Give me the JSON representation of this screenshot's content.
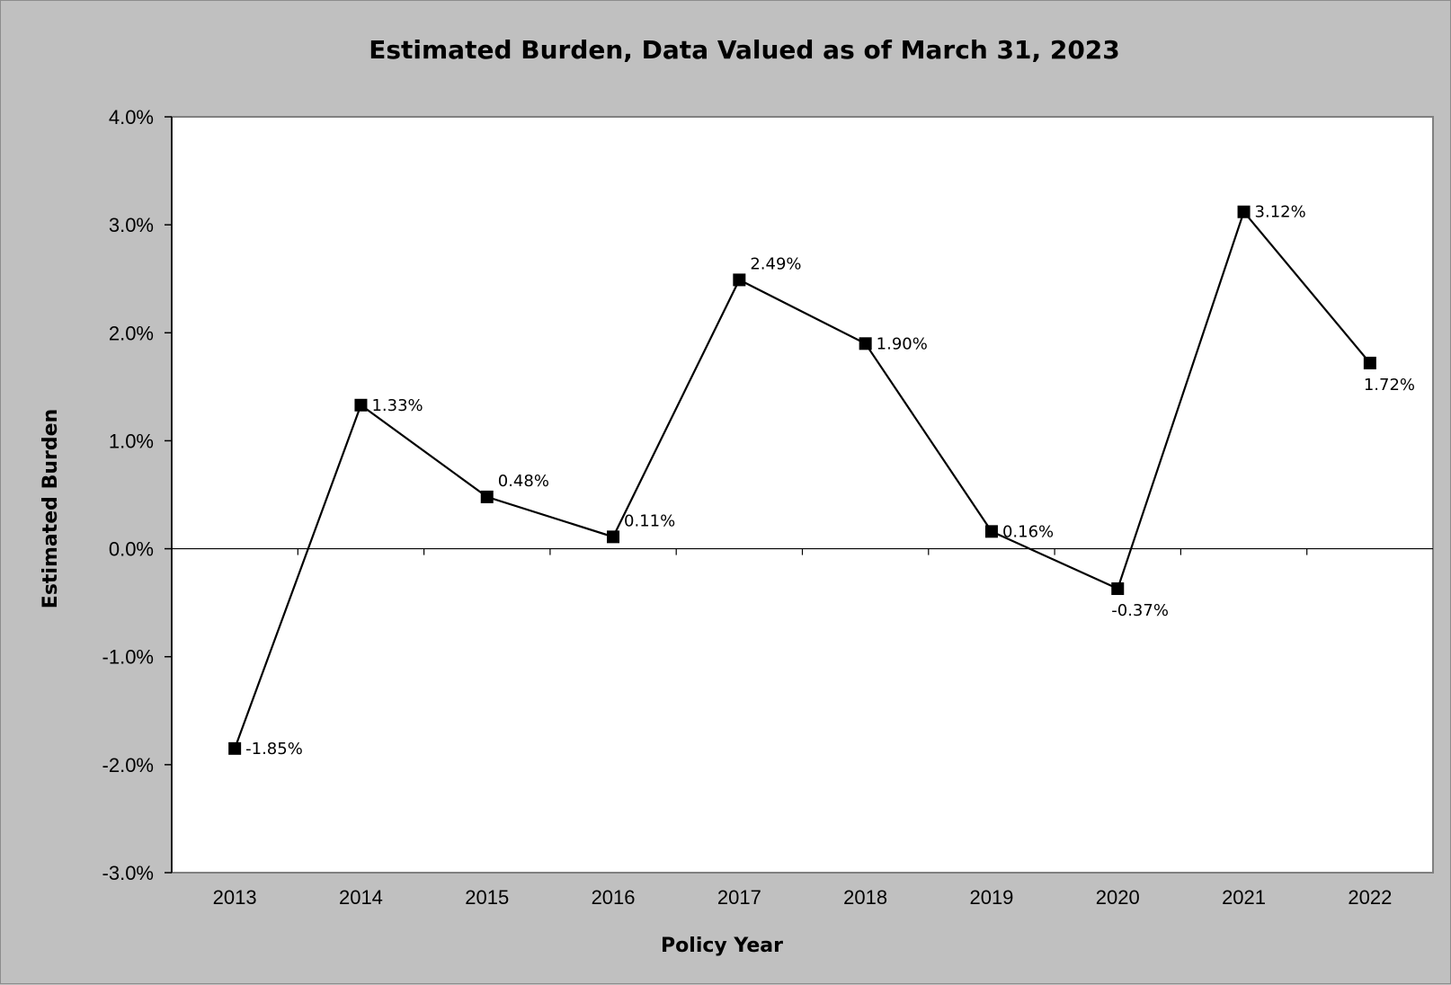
{
  "chart_data": {
    "type": "line",
    "title": "Estimated Burden, Data Valued as of March 31, 2023",
    "xlabel": "Policy Year",
    "ylabel": "Estimated Burden",
    "categories": [
      "2013",
      "2014",
      "2015",
      "2016",
      "2017",
      "2018",
      "2019",
      "2020",
      "2021",
      "2022"
    ],
    "series": [
      {
        "values": [
          -1.85,
          1.33,
          0.48,
          0.11,
          2.49,
          1.9,
          0.16,
          -0.37,
          3.12,
          1.72
        ],
        "data_labels": [
          "-1.85%",
          "1.33%",
          "0.48%",
          "0.11%",
          "2.49%",
          "1.90%",
          "0.16%",
          "-0.37%",
          "3.12%",
          "1.72%"
        ],
        "label_placement": [
          "right",
          "right",
          "above-right",
          "above-right",
          "above-right",
          "right",
          "right",
          "below",
          "right",
          "below"
        ],
        "color": "#000000",
        "marker": "square"
      }
    ],
    "ylim": [
      -3.0,
      4.0
    ],
    "y_ticks": [
      4.0,
      3.0,
      2.0,
      1.0,
      0.0,
      -1.0,
      -2.0,
      -3.0
    ],
    "y_tick_labels": [
      "4.0%",
      "3.0%",
      "2.0%",
      "1.0%",
      "0.0%",
      "-1.0%",
      "-2.0%",
      "-3.0%"
    ],
    "grid": false,
    "legend": "none",
    "plot_background": "#ffffff",
    "chart_background": "#c0c0c0"
  }
}
